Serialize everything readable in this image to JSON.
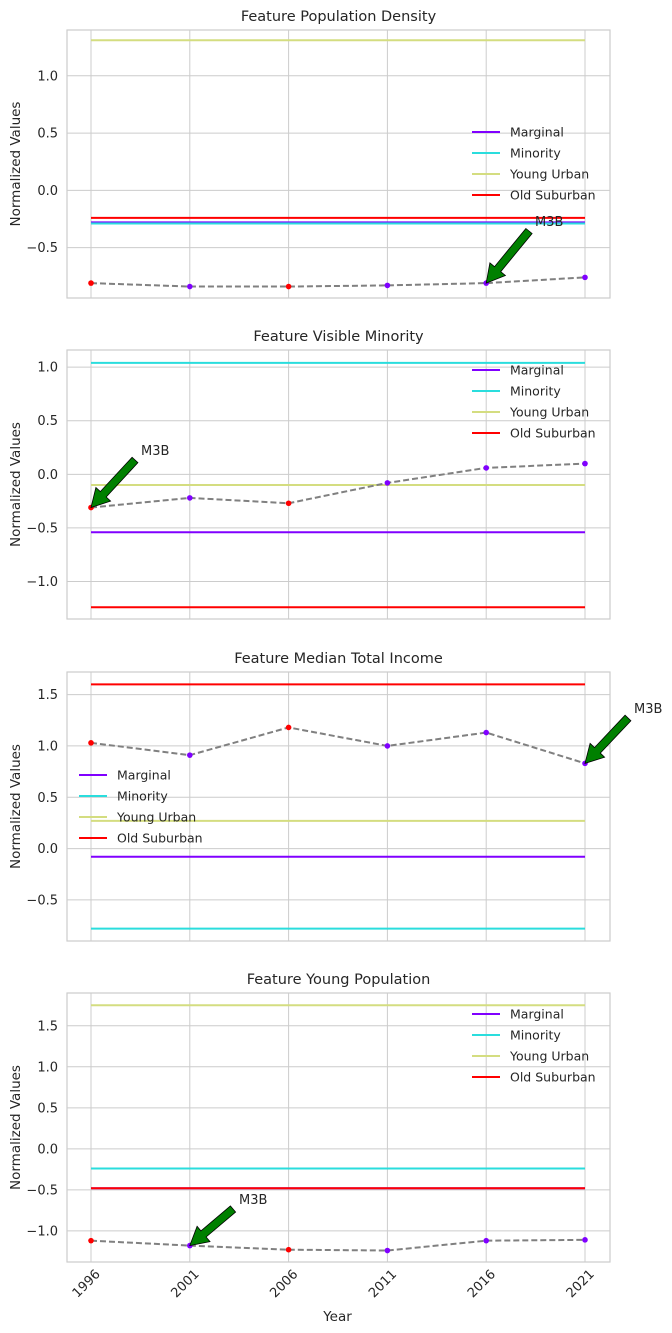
{
  "chart_data": [
    {
      "type": "line",
      "title": "Feature Population Density",
      "ylabel": "Normalized Values",
      "xlabel": "",
      "x": [
        1996,
        2001,
        2006,
        2011,
        2016,
        2021
      ],
      "ylim": [
        -0.94,
        1.4
      ],
      "yticks": [
        1.0,
        0.5,
        0.0,
        -0.5
      ],
      "ytick_labels": [
        "1.0",
        "0.5",
        "0.0",
        "−0.5"
      ],
      "grid": true,
      "legend_placement": "right",
      "references": [
        {
          "name": "Marginal",
          "value": -0.28,
          "color": "#8000ff"
        },
        {
          "name": "Minority",
          "value": -0.29,
          "color": "#2adddd"
        },
        {
          "name": "Young Urban",
          "value": 1.31,
          "color": "#d4dd80"
        },
        {
          "name": "Old Suburban",
          "value": -0.24,
          "color": "#ff0000"
        }
      ],
      "series": {
        "values": [
          -0.81,
          -0.84,
          -0.84,
          -0.83,
          -0.81,
          -0.76
        ],
        "marker_colors": [
          "#ff0000",
          "#8000ff",
          "#ff0000",
          "#8000ff",
          "#8000ff",
          "#8000ff"
        ]
      },
      "annotation": {
        "text": "M3B",
        "x": 2016,
        "y": -0.81
      }
    },
    {
      "type": "line",
      "title": "Feature Visible Minority",
      "ylabel": "Normalized Values",
      "xlabel": "",
      "x": [
        1996,
        2001,
        2006,
        2011,
        2016,
        2021
      ],
      "ylim": [
        -1.35,
        1.16
      ],
      "yticks": [
        1.0,
        0.5,
        0.0,
        -0.5,
        -1.0
      ],
      "ytick_labels": [
        "1.0",
        "0.5",
        "0.0",
        "−0.5",
        "−1.0"
      ],
      "grid": true,
      "legend_placement": "upper right",
      "references": [
        {
          "name": "Marginal",
          "value": -0.54,
          "color": "#8000ff"
        },
        {
          "name": "Minority",
          "value": 1.04,
          "color": "#2adddd"
        },
        {
          "name": "Young Urban",
          "value": -0.1,
          "color": "#d4dd80"
        },
        {
          "name": "Old Suburban",
          "value": -1.24,
          "color": "#ff0000"
        }
      ],
      "series": {
        "values": [
          -0.31,
          -0.22,
          -0.27,
          -0.08,
          0.06,
          0.1
        ],
        "marker_colors": [
          "#ff0000",
          "#8000ff",
          "#ff0000",
          "#8000ff",
          "#8000ff",
          "#8000ff"
        ]
      },
      "annotation": {
        "text": "M3B",
        "x": 1996,
        "y": -0.31
      }
    },
    {
      "type": "line",
      "title": "Feature Median Total Income",
      "ylabel": "Normalized Values",
      "xlabel": "",
      "x": [
        1996,
        2001,
        2006,
        2011,
        2016,
        2021
      ],
      "ylim": [
        -0.9,
        1.72
      ],
      "yticks": [
        1.5,
        1.0,
        0.5,
        0.0,
        -0.5
      ],
      "ytick_labels": [
        "1.5",
        "1.0",
        "0.5",
        "0.0",
        "−0.5"
      ],
      "grid": true,
      "legend_placement": "center left",
      "references": [
        {
          "name": "Marginal",
          "value": -0.08,
          "color": "#8000ff"
        },
        {
          "name": "Minority",
          "value": -0.78,
          "color": "#2adddd"
        },
        {
          "name": "Young Urban",
          "value": 0.27,
          "color": "#d4dd80"
        },
        {
          "name": "Old Suburban",
          "value": 1.6,
          "color": "#ff0000"
        }
      ],
      "series": {
        "values": [
          1.03,
          0.91,
          1.18,
          1.0,
          1.13,
          0.83
        ],
        "marker_colors": [
          "#ff0000",
          "#8000ff",
          "#ff0000",
          "#8000ff",
          "#8000ff",
          "#8000ff"
        ]
      },
      "annotation": {
        "text": "M3B",
        "x": 2021,
        "y": 0.83
      }
    },
    {
      "type": "line",
      "title": "Feature Young Population",
      "ylabel": "Normalized Values",
      "xlabel": "Year",
      "x": [
        1996,
        2001,
        2006,
        2011,
        2016,
        2021
      ],
      "xtick_labels": [
        "1996",
        "2001",
        "2006",
        "2011",
        "2016",
        "2021"
      ],
      "ylim": [
        -1.38,
        1.9
      ],
      "yticks": [
        1.5,
        1.0,
        0.5,
        0.0,
        -0.5,
        -1.0
      ],
      "ytick_labels": [
        "1.5",
        "1.0",
        "0.5",
        "0.0",
        "−0.5",
        "−1.0"
      ],
      "grid": true,
      "legend_placement": "upper right",
      "references": [
        {
          "name": "Marginal",
          "value": -0.48,
          "color": "#8000ff"
        },
        {
          "name": "Minority",
          "value": -0.24,
          "color": "#2adddd"
        },
        {
          "name": "Young Urban",
          "value": 1.75,
          "color": "#d4dd80"
        },
        {
          "name": "Old Suburban",
          "value": -0.48,
          "color": "#ff0000"
        }
      ],
      "series": {
        "values": [
          -1.12,
          -1.18,
          -1.23,
          -1.24,
          -1.12,
          -1.11
        ],
        "marker_colors": [
          "#ff0000",
          "#8000ff",
          "#ff0000",
          "#8000ff",
          "#8000ff",
          "#8000ff"
        ]
      },
      "annotation": {
        "text": "M3B",
        "x": 2001,
        "y": -1.18
      }
    }
  ]
}
